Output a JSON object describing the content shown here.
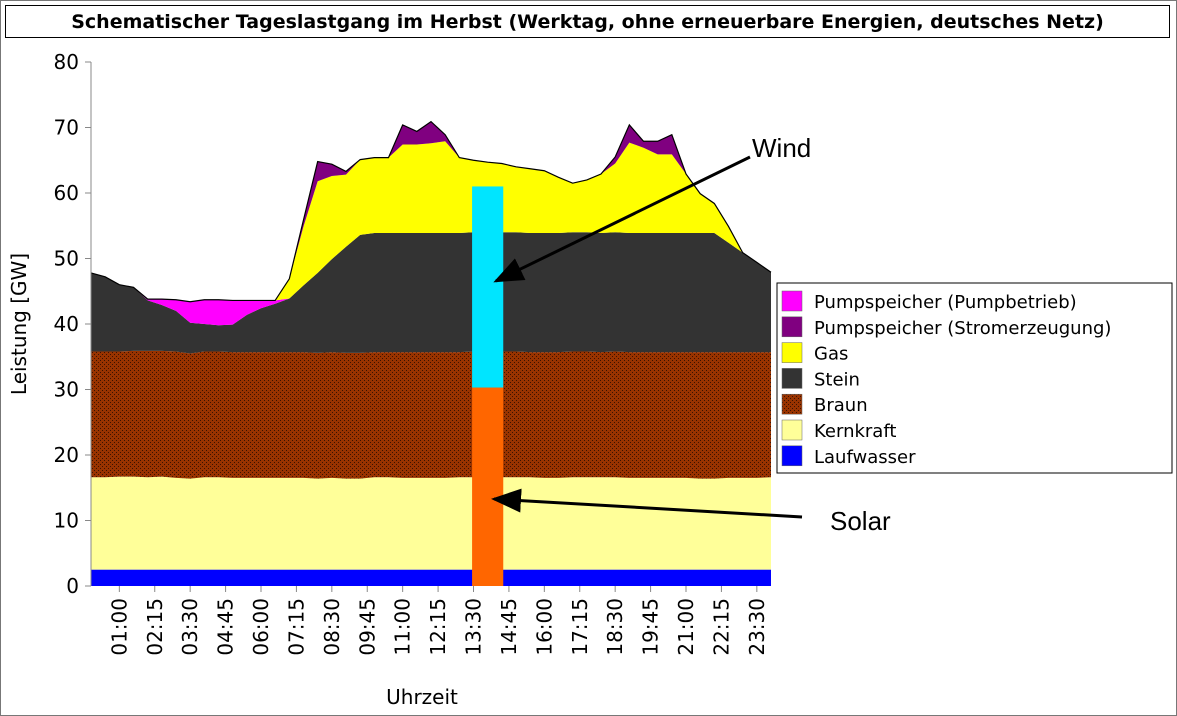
{
  "chart_data": {
    "type": "area",
    "title": "Schematischer Tageslastgang im Herbst (Werktag, ohne erneuerbare Energien, deutsches Netz)",
    "xlabel": "Uhrzeit",
    "ylabel": "Leistung [GW]",
    "xlim_hours": [
      0,
      24
    ],
    "ylim": [
      0,
      80
    ],
    "yticks": [
      "0",
      "10",
      "20",
      "30",
      "40",
      "50",
      "60",
      "70",
      "80"
    ],
    "xticks": [
      {
        "h": 1,
        "label": "01:00"
      },
      {
        "h": 2.25,
        "label": "02:15"
      },
      {
        "h": 3.5,
        "label": "03:30"
      },
      {
        "h": 4.75,
        "label": "04:45"
      },
      {
        "h": 6,
        "label": "06:00"
      },
      {
        "h": 7.25,
        "label": "07:15"
      },
      {
        "h": 8.5,
        "label": "08:30"
      },
      {
        "h": 9.75,
        "label": "09:45"
      },
      {
        "h": 11,
        "label": "11:00"
      },
      {
        "h": 12.25,
        "label": "12:15"
      },
      {
        "h": 13.5,
        "label": "13:30"
      },
      {
        "h": 14.75,
        "label": "14:45"
      },
      {
        "h": 16,
        "label": "16:00"
      },
      {
        "h": 17.25,
        "label": "17:15"
      },
      {
        "h": 18.5,
        "label": "18:30"
      },
      {
        "h": 19.75,
        "label": "19:45"
      },
      {
        "h": 21,
        "label": "21:00"
      },
      {
        "h": 22.25,
        "label": "22:15"
      },
      {
        "h": 23.5,
        "label": "23:30"
      }
    ],
    "x_step_hours": 0.5,
    "stacked": true,
    "series": [
      {
        "name": "Laufwasser",
        "color": "#0000ff",
        "values": [
          2.5,
          2.5,
          2.5,
          2.5,
          2.5,
          2.5,
          2.5,
          2.5,
          2.5,
          2.5,
          2.5,
          2.5,
          2.5,
          2.5,
          2.5,
          2.5,
          2.5,
          2.5,
          2.5,
          2.5,
          2.5,
          2.5,
          2.5,
          2.5,
          2.5,
          2.5,
          2.5,
          2.5,
          2.5,
          2.5,
          2.5,
          2.5,
          2.5,
          2.5,
          2.5,
          2.5,
          2.5,
          2.5,
          2.5,
          2.5,
          2.5,
          2.5,
          2.5,
          2.5,
          2.5,
          2.5,
          2.5,
          2.5,
          2.5
        ]
      },
      {
        "name": "Kernkraft",
        "color": "#ffff99",
        "values": [
          14.1,
          14.1,
          14.2,
          14.2,
          14.1,
          14.2,
          14.0,
          13.9,
          14.1,
          14.1,
          14.0,
          14.0,
          14.0,
          14.0,
          14.0,
          14.0,
          13.9,
          14.0,
          13.9,
          13.9,
          14.1,
          14.1,
          14.0,
          14.0,
          14.0,
          14.0,
          14.1,
          14.1,
          14.0,
          14.1,
          14.1,
          14.1,
          14.0,
          14.0,
          14.1,
          14.1,
          14.1,
          14.1,
          14.0,
          14.0,
          14.0,
          14.0,
          14.0,
          13.9,
          13.9,
          14.0,
          14.0,
          14.0,
          14.1
        ]
      },
      {
        "name": "Braun",
        "color": "#993300",
        "values": [
          19.2,
          19.2,
          19.1,
          19.2,
          19.3,
          19.2,
          19.3,
          19.1,
          19.2,
          19.2,
          19.2,
          19.2,
          19.2,
          19.2,
          19.2,
          19.2,
          19.2,
          19.2,
          19.2,
          19.2,
          19.1,
          19.1,
          19.2,
          19.2,
          19.2,
          19.2,
          19.1,
          19.2,
          19.2,
          19.2,
          19.2,
          19.1,
          19.2,
          19.2,
          19.2,
          19.2,
          19.1,
          19.2,
          19.2,
          19.2,
          19.2,
          19.2,
          19.2,
          19.3,
          19.3,
          19.2,
          19.2,
          19.2,
          19.1
        ]
      },
      {
        "name": "Stein",
        "color": "#333333",
        "values": [
          12,
          11.4,
          10.2,
          9.7,
          7.7,
          7,
          6.2,
          4.7,
          4.2,
          4,
          4.2,
          5.7,
          6.7,
          7.4,
          8.2,
          10.2,
          12.2,
          14.2,
          16.2,
          18,
          18.2,
          18.2,
          18.2,
          18.2,
          18.2,
          18.2,
          18.2,
          18.2,
          18.2,
          18.2,
          18.2,
          18.2,
          18.2,
          18.2,
          18.2,
          18.2,
          18.2,
          18.2,
          18.2,
          18.2,
          18.2,
          18.2,
          18.2,
          18.2,
          18.2,
          16.7,
          15.2,
          13.7,
          12.2
        ]
      },
      {
        "name": "Pumpspeicher (Pumpbetrieb)",
        "color": "#ff00ff",
        "values": [
          0,
          0,
          0,
          0,
          0.2,
          0.9,
          1.7,
          3.2,
          3.7,
          3.9,
          3.7,
          2.2,
          1.2,
          0.5,
          0,
          0,
          0,
          0,
          0,
          0,
          0,
          0,
          0,
          0,
          0,
          0,
          0,
          0,
          0,
          0,
          0,
          0,
          0,
          0,
          0,
          0,
          0,
          0,
          0,
          0,
          0,
          0,
          0,
          0,
          0,
          0,
          0,
          0,
          0
        ]
      },
      {
        "name": "Gas",
        "color": "#ffff00",
        "values": [
          0,
          0,
          0,
          0,
          0,
          0,
          0,
          0,
          0,
          0,
          0,
          0,
          0,
          0,
          3,
          9,
          14,
          12.7,
          11,
          11.5,
          11.5,
          11.5,
          13.5,
          13.5,
          13.7,
          14,
          11.5,
          11,
          10.8,
          10.5,
          10,
          9.8,
          9.5,
          8.5,
          7.5,
          8,
          9,
          10.5,
          13.8,
          13,
          12,
          12,
          9,
          6,
          4.5,
          2.5,
          0,
          0,
          0
        ]
      },
      {
        "name": "Pumpspeicher (Stromerzeugung)",
        "color": "#800080",
        "values": [
          0,
          0,
          0,
          0,
          0,
          0,
          0,
          0,
          0,
          0,
          0,
          0,
          0,
          0,
          0,
          1,
          3,
          1.8,
          0.5,
          0,
          0,
          0,
          3,
          2,
          3.3,
          1,
          0,
          0,
          0,
          0,
          0,
          0,
          0,
          0,
          0,
          0,
          0,
          1,
          2.7,
          1,
          2,
          3,
          0,
          0,
          0,
          0,
          0,
          0,
          0
        ]
      }
    ],
    "legend": {
      "placement": "right",
      "order": [
        "Pumpspeicher (Pumpbetrieb)",
        "Pumpspeicher (Stromerzeugung)",
        "Gas",
        "Stein",
        "Braun",
        "Kernkraft",
        "Laufwasser"
      ]
    },
    "overlay_bar": {
      "from_hour": 13.45,
      "to_hour": 14.55,
      "segments": [
        {
          "name": "Solar",
          "from": 0,
          "to": 30.3,
          "color": "#ff6600"
        },
        {
          "name": "Wind",
          "from": 30.3,
          "to": 61,
          "color": "#00e5ff"
        }
      ]
    },
    "annotations": [
      {
        "text": "Wind",
        "target_gw": 46,
        "target": "Wind"
      },
      {
        "text": "Solar",
        "target_gw": 13.3,
        "target": "Solar"
      }
    ]
  }
}
